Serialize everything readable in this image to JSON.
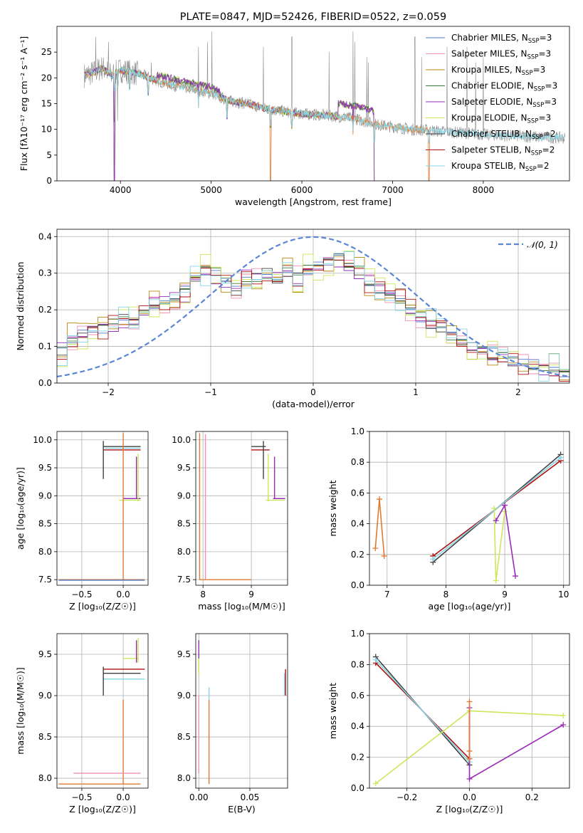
{
  "figure": {
    "title": "PLATE=0847, MJD=52426, FIBERID=0522, z=0.059"
  },
  "colors": {
    "data": "#8c8c8c",
    "chabrier_miles": "#4f78c8",
    "salpeter_miles": "#f090b4",
    "kroupa_miles": "#b8860b",
    "chabrier_elodie": "#3c7a3c",
    "salpeter_elodie": "#9a2cb8",
    "kroupa_elodie": "#cbe85a",
    "chabrier_stelib": "#404040",
    "salpeter_stelib": "#b01010",
    "kroupa_stelib": "#86d6e6",
    "model_orange": "#e07a30",
    "normal": "#5b86d6",
    "grid": "#b0b0b0"
  },
  "models": [
    {
      "key": "chabrier_miles",
      "name": "Chabrier MILES",
      "nssp": "3"
    },
    {
      "key": "salpeter_miles",
      "name": "Salpeter MILES",
      "nssp": "3"
    },
    {
      "key": "kroupa_miles",
      "name": "Kroupa MILES",
      "nssp": "3"
    },
    {
      "key": "chabrier_elodie",
      "name": "Chabrier ELODIE",
      "nssp": "3"
    },
    {
      "key": "salpeter_elodie",
      "name": "Salpeter ELODIE",
      "nssp": "3"
    },
    {
      "key": "kroupa_elodie",
      "name": "Kroupa ELODIE",
      "nssp": "3"
    },
    {
      "key": "chabrier_stelib",
      "name": "Chabrier STELIB",
      "nssp": "2"
    },
    {
      "key": "salpeter_stelib",
      "name": "Salpeter STELIB",
      "nssp": "2"
    },
    {
      "key": "kroupa_stelib",
      "name": "Kroupa STELIB",
      "nssp": "2"
    }
  ],
  "legend_suffix": {
    "prefix": ", N",
    "sub": "SSP",
    "eq": "="
  },
  "chart_data": [
    {
      "id": "spectrum",
      "type": "line",
      "title": "PLATE=0847, MJD=52426, FIBERID=0522, z=0.059",
      "xlabel": "wavelength [Angstrom, rest frame]",
      "ylabel": "Flux [fλ10⁻¹⁷ erg cm⁻² s⁻¹ A⁻¹]",
      "xlim": [
        3300,
        8950
      ],
      "ylim": [
        0,
        30
      ],
      "xticks": [
        4000,
        5000,
        6000,
        7000,
        8000
      ],
      "yticks": [
        0,
        5,
        10,
        15,
        20,
        25
      ],
      "grid": false,
      "legend": "top-right",
      "continuum_x": [
        3600,
        3700,
        3800,
        3900,
        4000,
        4200,
        4400,
        4600,
        4800,
        5000,
        5200,
        5400,
        5600,
        5800,
        6000,
        6200,
        6400,
        6600,
        6800,
        7000,
        7200,
        7400,
        7600,
        7800,
        8000,
        8200,
        8400,
        8600,
        8800,
        8900
      ],
      "continuum_y": [
        20.5,
        21.0,
        22.0,
        20.5,
        21.5,
        20.8,
        19.5,
        18.5,
        17.8,
        17.0,
        15.5,
        15.0,
        14.0,
        13.5,
        13.0,
        12.8,
        12.5,
        12.0,
        11.0,
        10.5,
        10.0,
        9.8,
        9.5,
        9.3,
        9.0,
        8.8,
        8.7,
        8.5,
        8.4,
        8.3
      ],
      "absorption_lines": [
        [
          3934,
          0
        ],
        [
          3968,
          5
        ],
        [
          4102,
          12
        ],
        [
          4304,
          8
        ],
        [
          4861,
          11
        ],
        [
          5175,
          9
        ],
        [
          5655,
          0
        ],
        [
          5890,
          10
        ],
        [
          6563,
          9
        ],
        [
          6800,
          0
        ],
        [
          7400,
          0
        ]
      ],
      "emission_lines_data": [
        [
          3727,
          28
        ],
        [
          3869,
          27
        ],
        [
          4340,
          23
        ],
        [
          4861,
          26
        ],
        [
          4959,
          27
        ],
        [
          5007,
          29
        ],
        [
          5577,
          26
        ],
        [
          5890,
          28
        ],
        [
          6300,
          25
        ],
        [
          6563,
          29
        ],
        [
          6583,
          27
        ],
        [
          6716,
          24
        ],
        [
          6731,
          23
        ],
        [
          7246,
          28
        ],
        [
          7319,
          24
        ],
        [
          7600,
          26
        ],
        [
          7821,
          26
        ],
        [
          7916,
          23
        ],
        [
          8000,
          24
        ]
      ]
    },
    {
      "id": "residuals",
      "type": "line",
      "xlabel": "(data-model)/error",
      "ylabel": "Normed distribution",
      "xlim": [
        -2.5,
        2.5
      ],
      "ylim": [
        0,
        0.42
      ],
      "xticks": [
        -2,
        -1,
        0,
        1,
        2
      ],
      "yticks": [
        0.0,
        0.1,
        0.2,
        0.3,
        0.4
      ],
      "grid": true,
      "legend": "top-right",
      "normal_label": "𝒩(0, 1)",
      "hist_edges_start": -2.5,
      "hist_bin": 0.1,
      "hist_base": [
        0.09,
        0.12,
        0.13,
        0.14,
        0.15,
        0.17,
        0.18,
        0.17,
        0.19,
        0.21,
        0.22,
        0.23,
        0.25,
        0.29,
        0.31,
        0.3,
        0.28,
        0.26,
        0.28,
        0.29,
        0.3,
        0.28,
        0.3,
        0.29,
        0.31,
        0.32,
        0.33,
        0.34,
        0.33,
        0.31,
        0.27,
        0.26,
        0.24,
        0.23,
        0.2,
        0.18,
        0.16,
        0.14,
        0.13,
        0.11,
        0.1,
        0.09,
        0.08,
        0.07,
        0.06,
        0.05,
        0.05,
        0.04,
        0.04,
        0.03
      ]
    },
    {
      "id": "age_vs_Z",
      "type": "scatter",
      "xlabel": "Z [log₁₀(Z/Z☉)]",
      "ylabel": "age  [log₁₀(age/yr)]",
      "xlim": [
        -0.8,
        0.3
      ],
      "ylim": [
        7.4,
        10.15
      ],
      "xticks": [
        -0.5,
        0.0
      ],
      "yticks": [
        7.5,
        8.0,
        8.5,
        9.0,
        9.5,
        10.0
      ],
      "grid": true,
      "segments": [
        {
          "c": "chabrier_stelib",
          "x": [
            -0.24,
            0.21
          ],
          "y": [
            9.88,
            9.88
          ]
        },
        {
          "c": "salpeter_stelib",
          "x": [
            -0.24,
            0.21
          ],
          "y": [
            9.82,
            9.82
          ]
        },
        {
          "c": "kroupa_stelib",
          "x": [
            -0.22,
            0.21
          ],
          "y": [
            9.85,
            9.85
          ]
        },
        {
          "c": "chabrier_stelib",
          "x": [
            -0.24,
            -0.24
          ],
          "y": [
            9.3,
            9.98
          ]
        },
        {
          "c": "salpeter_elodie",
          "x": [
            0.0,
            0.21
          ],
          "y": [
            8.95,
            8.95
          ]
        },
        {
          "c": "kroupa_elodie",
          "x": [
            -0.05,
            0.21
          ],
          "y": [
            8.92,
            8.92
          ]
        },
        {
          "c": "kroupa_elodie",
          "x": [
            0.18,
            0.18
          ],
          "y": [
            8.9,
            9.75
          ]
        },
        {
          "c": "salpeter_elodie",
          "x": [
            0.16,
            0.16
          ],
          "y": [
            8.95,
            9.7
          ]
        },
        {
          "c": "model_orange",
          "x": [
            0.0,
            0.0
          ],
          "y": [
            7.5,
            10.12
          ]
        },
        {
          "c": "model_orange",
          "x": [
            -0.78,
            0.26
          ],
          "y": [
            7.5,
            7.5
          ]
        },
        {
          "c": "chabrier_miles",
          "x": [
            -0.78,
            0.26
          ],
          "y": [
            7.49,
            7.49
          ]
        }
      ]
    },
    {
      "id": "age_vs_mass",
      "type": "scatter",
      "xlabel": "mass [log₁₀(M/M☉)]",
      "xlim": [
        7.85,
        9.75
      ],
      "ylim": [
        7.4,
        10.15
      ],
      "xticks": [
        8,
        9
      ],
      "yticks": [
        7.5,
        8.0,
        8.5,
        9.0,
        9.5,
        10.0
      ],
      "grid": true,
      "segments": [
        {
          "c": "model_orange",
          "x": [
            7.93,
            7.93
          ],
          "y": [
            7.5,
            10.12
          ]
        },
        {
          "c": "salpeter_miles",
          "x": [
            8.05,
            8.05
          ],
          "y": [
            7.5,
            10.1
          ]
        },
        {
          "c": "model_orange",
          "x": [
            7.93,
            9.0
          ],
          "y": [
            7.5,
            7.5
          ]
        },
        {
          "c": "chabrier_stelib",
          "x": [
            9.0,
            9.3
          ],
          "y": [
            9.88,
            9.88
          ]
        },
        {
          "c": "salpeter_stelib",
          "x": [
            9.0,
            9.38
          ],
          "y": [
            9.82,
            9.82
          ]
        },
        {
          "c": "chabrier_stelib",
          "x": [
            9.25,
            9.25
          ],
          "y": [
            9.3,
            9.98
          ]
        },
        {
          "c": "kroupa_elodie",
          "x": [
            9.3,
            9.7
          ],
          "y": [
            8.92,
            8.92
          ]
        },
        {
          "c": "salpeter_elodie",
          "x": [
            9.48,
            9.48
          ],
          "y": [
            8.95,
            9.7
          ]
        },
        {
          "c": "kroupa_elodie",
          "x": [
            9.35,
            9.35
          ],
          "y": [
            8.9,
            9.75
          ]
        },
        {
          "c": "salpeter_elodie",
          "x": [
            9.45,
            9.7
          ],
          "y": [
            8.95,
            8.95
          ]
        }
      ]
    },
    {
      "id": "massweight_vs_age",
      "type": "line",
      "xlabel": "age  [log₁₀(age/yr)]",
      "ylabel": "mass weight",
      "xlim": [
        6.7,
        10.1
      ],
      "ylim": [
        0.0,
        1.0
      ],
      "xticks": [
        7,
        8,
        9,
        10
      ],
      "yticks": [
        0.0,
        0.2,
        0.4,
        0.6,
        0.8,
        1.0
      ],
      "grid": true,
      "series": [
        {
          "c": "chabrier_stelib",
          "x": [
            7.78,
            9.95
          ],
          "y": [
            0.15,
            0.85
          ]
        },
        {
          "c": "salpeter_stelib",
          "x": [
            7.78,
            9.95
          ],
          "y": [
            0.19,
            0.81
          ]
        },
        {
          "c": "kroupa_stelib",
          "x": [
            7.78,
            9.95
          ],
          "y": [
            0.17,
            0.83
          ]
        },
        {
          "c": "model_orange",
          "x": [
            6.8,
            6.87,
            6.95
          ],
          "y": [
            0.24,
            0.56,
            0.19
          ]
        },
        {
          "c": "kroupa_elodie",
          "x": [
            8.82,
            8.85,
            9.0
          ],
          "y": [
            0.5,
            0.03,
            0.48
          ]
        },
        {
          "c": "salpeter_elodie",
          "x": [
            8.85,
            9.0,
            9.18
          ],
          "y": [
            0.42,
            0.52,
            0.06
          ]
        }
      ]
    },
    {
      "id": "mass_vs_Z",
      "type": "scatter",
      "xlabel": "Z [log₁₀(Z/Z☉)]",
      "ylabel": "mass [log₁₀(M/M☉)]",
      "xlim": [
        -0.8,
        0.3
      ],
      "ylim": [
        7.88,
        9.75
      ],
      "xticks": [
        -0.5,
        0.0
      ],
      "yticks": [
        8.0,
        8.5,
        9.0,
        9.5
      ],
      "grid": true,
      "segments": [
        {
          "c": "salpeter_stelib",
          "x": [
            -0.24,
            0.26
          ],
          "y": [
            9.32,
            9.32
          ]
        },
        {
          "c": "chabrier_stelib",
          "x": [
            -0.24,
            0.21
          ],
          "y": [
            9.27,
            9.27
          ]
        },
        {
          "c": "kroupa_stelib",
          "x": [
            -0.24,
            0.26
          ],
          "y": [
            9.2,
            9.2
          ]
        },
        {
          "c": "chabrier_stelib",
          "x": [
            -0.24,
            -0.24
          ],
          "y": [
            9.0,
            9.35
          ]
        },
        {
          "c": "kroupa_elodie",
          "x": [
            0.0,
            0.18
          ],
          "y": [
            9.45,
            9.45
          ]
        },
        {
          "c": "salpeter_elodie",
          "x": [
            0.16,
            0.16
          ],
          "y": [
            9.4,
            9.67
          ]
        },
        {
          "c": "kroupa_elodie",
          "x": [
            0.18,
            0.18
          ],
          "y": [
            9.4,
            9.7
          ]
        },
        {
          "c": "model_orange",
          "x": [
            0.0,
            0.0
          ],
          "y": [
            7.93,
            8.95
          ]
        },
        {
          "c": "salpeter_miles",
          "x": [
            -0.6,
            0.21
          ],
          "y": [
            8.06,
            8.06
          ]
        },
        {
          "c": "model_orange",
          "x": [
            -0.78,
            0.21
          ],
          "y": [
            7.93,
            7.93
          ]
        }
      ]
    },
    {
      "id": "mass_vs_EBV",
      "type": "scatter",
      "xlabel": "E(B-V)",
      "xlim": [
        -0.003,
        0.087
      ],
      "ylim": [
        7.88,
        9.75
      ],
      "xticks": [
        0.0,
        0.05
      ],
      "xticklabels": [
        "0.00",
        "0.05"
      ],
      "yticks": [
        8.0,
        8.5,
        9.0,
        9.5
      ],
      "grid": true,
      "segments": [
        {
          "c": "salpeter_elodie",
          "x": [
            0.0,
            0.0
          ],
          "y": [
            9.3,
            9.67
          ]
        },
        {
          "c": "kroupa_elodie",
          "x": [
            0.0,
            0.0
          ],
          "y": [
            9.25,
            9.45
          ]
        },
        {
          "c": "salpeter_miles",
          "x": [
            0.0,
            0.0
          ],
          "y": [
            8.06,
            9.0
          ]
        },
        {
          "c": "model_orange",
          "x": [
            0.01,
            0.01
          ],
          "y": [
            7.93,
            8.95
          ]
        },
        {
          "c": "kroupa_stelib",
          "x": [
            0.01,
            0.01
          ],
          "y": [
            8.95,
            9.1
          ]
        },
        {
          "c": "salpeter_stelib",
          "x": [
            0.085,
            0.085
          ],
          "y": [
            9.0,
            9.32
          ]
        },
        {
          "c": "kroupa_stelib",
          "x": [
            0.084,
            0.084
          ],
          "y": [
            9.0,
            9.27
          ]
        }
      ]
    },
    {
      "id": "massweight_vs_Z",
      "type": "line",
      "xlabel": "Z [log₁₀(Z/Z☉)]",
      "ylabel": "mass weight",
      "xlim": [
        -0.32,
        0.32
      ],
      "ylim": [
        0.0,
        1.0
      ],
      "xticks": [
        -0.2,
        0.0,
        0.2
      ],
      "yticks": [
        0.0,
        0.2,
        0.4,
        0.6,
        0.8,
        1.0
      ],
      "grid": true,
      "series": [
        {
          "c": "chabrier_stelib",
          "x": [
            -0.3,
            0.0
          ],
          "y": [
            0.85,
            0.15
          ]
        },
        {
          "c": "salpeter_stelib",
          "x": [
            -0.3,
            0.0
          ],
          "y": [
            0.81,
            0.19
          ]
        },
        {
          "c": "kroupa_stelib",
          "x": [
            -0.3,
            0.0
          ],
          "y": [
            0.83,
            0.17
          ]
        },
        {
          "c": "kroupa_elodie",
          "x": [
            -0.3,
            0.0,
            0.3
          ],
          "y": [
            0.03,
            0.5,
            0.47
          ]
        },
        {
          "c": "salpeter_elodie",
          "x": [
            0.0,
            0.0,
            0.3
          ],
          "y": [
            0.52,
            0.06,
            0.41
          ]
        },
        {
          "c": "model_orange",
          "x": [
            0.0,
            0.0,
            0.0
          ],
          "y": [
            0.19,
            0.24,
            0.56
          ]
        }
      ]
    }
  ]
}
